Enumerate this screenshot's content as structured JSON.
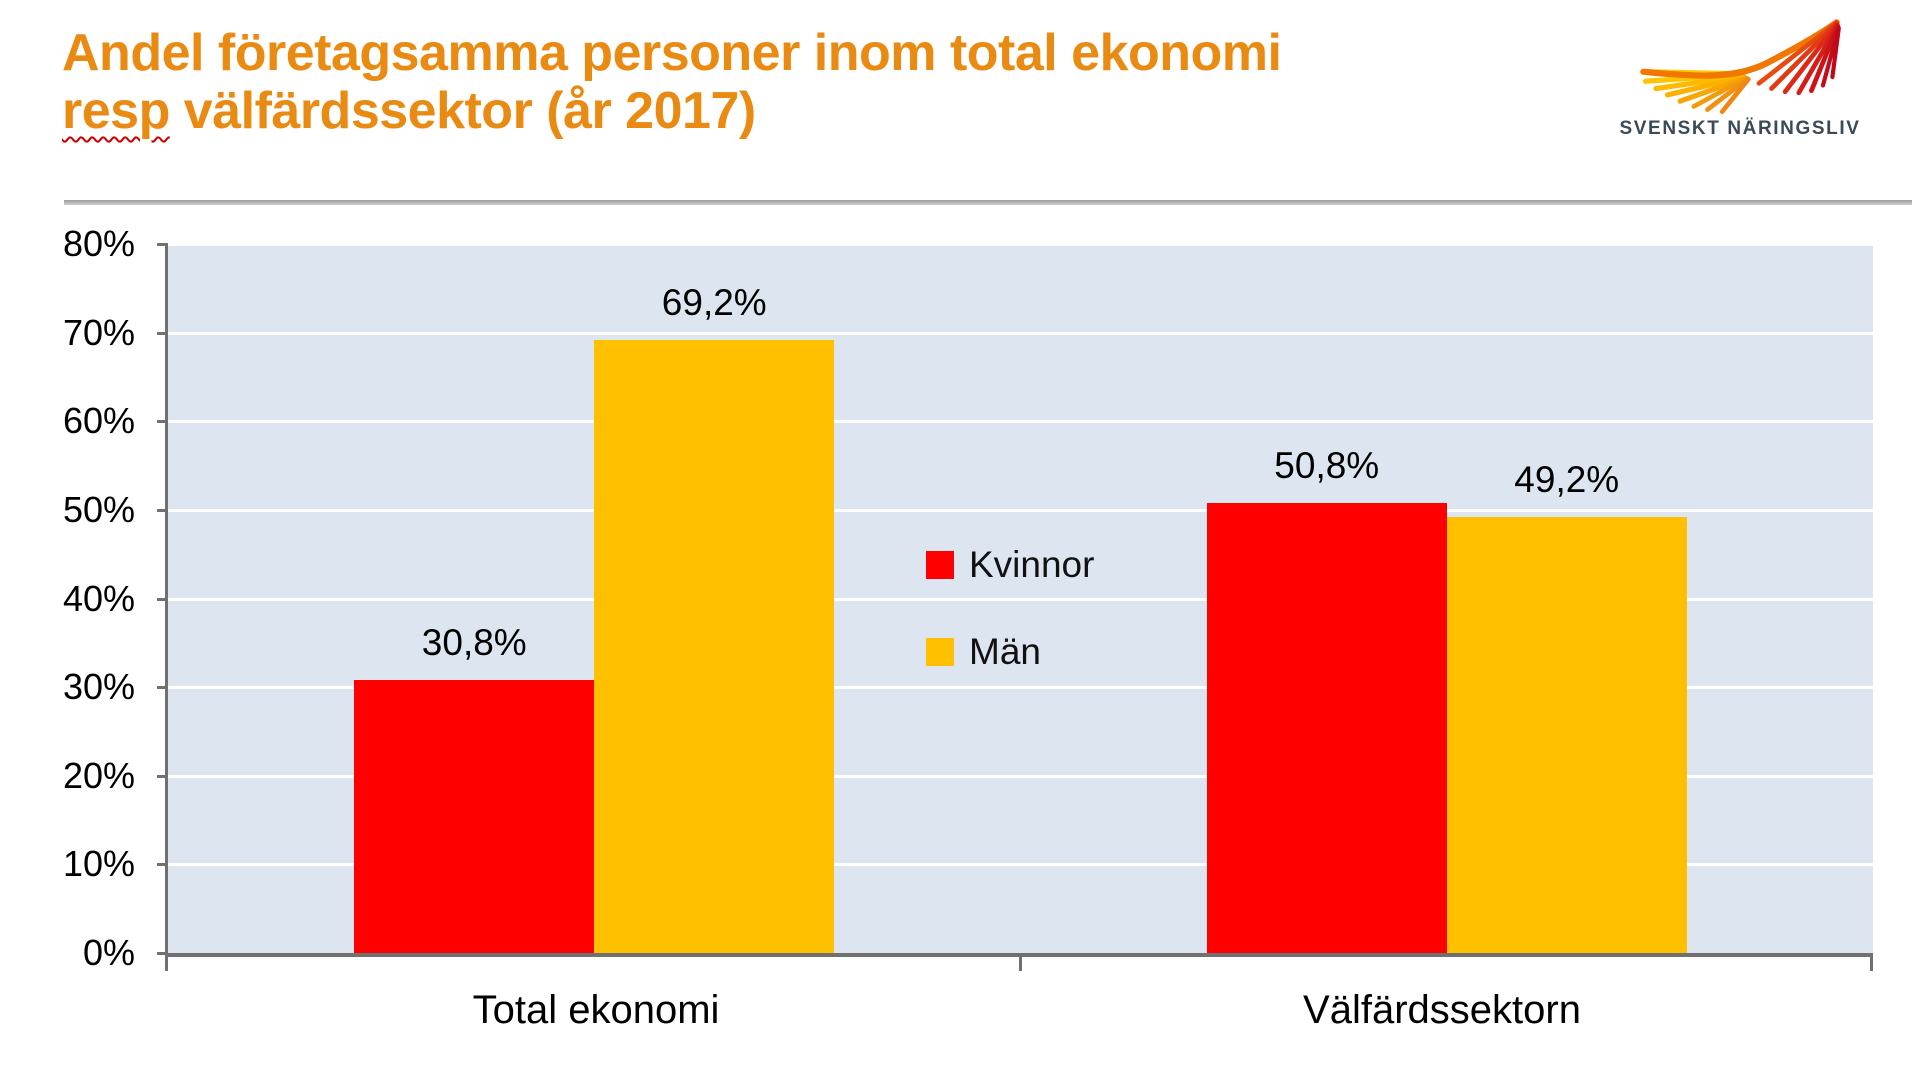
{
  "header": {
    "title_line1": "Andel företagsamma personer inom total ekonomi",
    "title_line2_misspelled_word": "resp",
    "title_line2_rest": " välfärdssektor (år 2017)",
    "logo_text": "SVENSKT NÄRINGSLIV"
  },
  "colors": {
    "title_orange": "#E98A12",
    "bar_red": "#FF0000",
    "bar_yellow": "#FFC000",
    "plot_background": "#DCE5F0",
    "gridline": "#FFFFFF",
    "axis_gray": "#707070",
    "logo_text_color": "#3A4A57"
  },
  "chart_data": {
    "type": "bar",
    "title": "Andel företagsamma personer inom total ekonomi resp välfärdssektor (år 2017)",
    "categories": [
      "Total ekonomi",
      "Välfärdssektorn"
    ],
    "series": [
      {
        "name": "Kvinnor",
        "color": "#FF0000",
        "values": [
          30.8,
          50.8
        ],
        "labels": [
          "30,8%",
          "50,8%"
        ]
      },
      {
        "name": "Män",
        "color": "#FFC000",
        "values": [
          69.2,
          49.2
        ],
        "labels": [
          "69,2%",
          "49,2%"
        ]
      }
    ],
    "ylim": [
      0,
      80
    ],
    "y_ticks": [
      {
        "value": 0,
        "label": "0%"
      },
      {
        "value": 10,
        "label": "10%"
      },
      {
        "value": 20,
        "label": "20%"
      },
      {
        "value": 30,
        "label": "30%"
      },
      {
        "value": 40,
        "label": "40%"
      },
      {
        "value": 50,
        "label": "50%"
      },
      {
        "value": 60,
        "label": "60%"
      },
      {
        "value": 70,
        "label": "70%"
      },
      {
        "value": 80,
        "label": "80%"
      }
    ],
    "grid": "horizontal",
    "legend_position": "center-of-plot"
  }
}
